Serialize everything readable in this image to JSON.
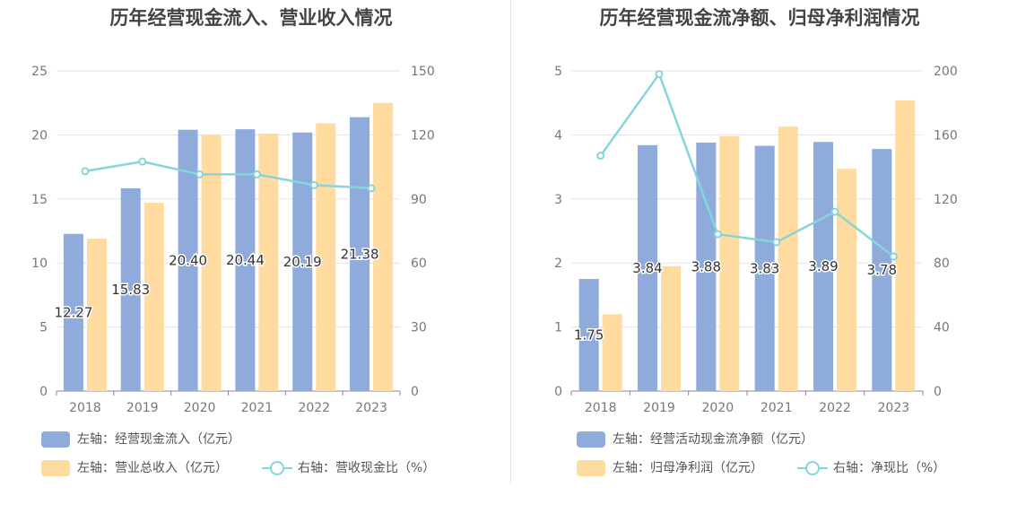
{
  "colors": {
    "bar1": "#8eabdb",
    "bar2": "#ffdba0",
    "line": "#86d5dc",
    "grid": "#dfe3ee",
    "axis_text": "#777777"
  },
  "chart_data": [
    {
      "type": "bar",
      "title": "历年经营现金流入、营业收入情况",
      "categories": [
        "2018",
        "2019",
        "2020",
        "2021",
        "2022",
        "2023"
      ],
      "left_axis": {
        "ylim": [
          0,
          25
        ],
        "ticks": [
          0,
          5,
          10,
          15,
          20,
          25
        ]
      },
      "right_axis": {
        "ylim": [
          0,
          150
        ],
        "ticks": [
          0,
          30,
          60,
          90,
          120,
          150
        ]
      },
      "series": [
        {
          "name": "左轴：经营现金流入（亿元）",
          "type": "bar",
          "axis": "left",
          "values": [
            12.27,
            15.83,
            20.4,
            20.44,
            20.19,
            21.38
          ],
          "labels": [
            "12.27",
            "15.83",
            "20.40",
            "20.44",
            "20.19",
            "21.38"
          ]
        },
        {
          "name": "左轴：营业总收入（亿元）",
          "type": "bar",
          "axis": "left",
          "values": [
            11.9,
            14.7,
            20.0,
            20.1,
            20.9,
            22.5
          ]
        },
        {
          "name": "右轴：营收现金比（%）",
          "type": "line",
          "axis": "right",
          "values": [
            103,
            107.5,
            101.5,
            101.5,
            96.5,
            95
          ]
        }
      ],
      "legend_position": "bottom"
    },
    {
      "type": "bar",
      "title": "历年经营现金流净额、归母净利润情况",
      "categories": [
        "2018",
        "2019",
        "2020",
        "2021",
        "2022",
        "2023"
      ],
      "left_axis": {
        "ylim": [
          0,
          5
        ],
        "ticks": [
          0,
          1,
          2,
          3,
          4,
          5
        ]
      },
      "right_axis": {
        "ylim": [
          0,
          200
        ],
        "ticks": [
          0,
          40,
          80,
          120,
          160,
          200
        ]
      },
      "series": [
        {
          "name": "左轴：经营活动现金流净额（亿元）",
          "type": "bar",
          "axis": "left",
          "values": [
            1.75,
            3.84,
            3.88,
            3.83,
            3.89,
            3.78
          ],
          "labels": [
            "1.75",
            "3.84",
            "3.88",
            "3.83",
            "3.89",
            "3.78"
          ]
        },
        {
          "name": "左轴：归母净利润（亿元）",
          "type": "bar",
          "axis": "left",
          "values": [
            1.2,
            1.95,
            3.98,
            4.13,
            3.47,
            4.54
          ]
        },
        {
          "name": "右轴：净现比（%）",
          "type": "line",
          "axis": "right",
          "values": [
            147,
            198,
            98,
            93,
            112,
            84
          ]
        }
      ],
      "legend_position": "bottom"
    }
  ]
}
